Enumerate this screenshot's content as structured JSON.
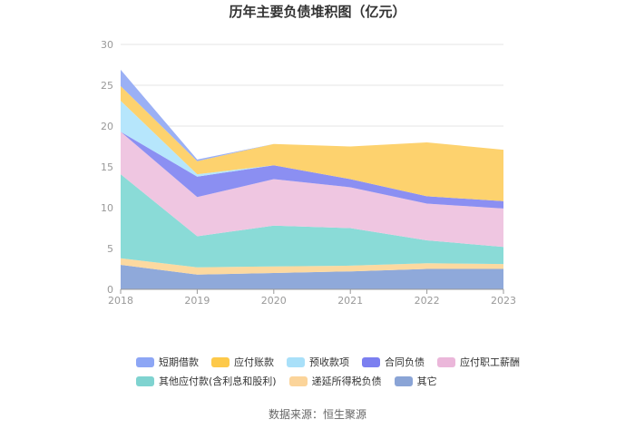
{
  "chart_data": {
    "type": "area",
    "title": "历年主要负债堆积图（亿元）",
    "stacked": true,
    "categories": [
      "2018",
      "2019",
      "2020",
      "2021",
      "2022",
      "2023"
    ],
    "ylim": [
      0,
      30
    ],
    "yticks": [
      "0",
      "5",
      "10",
      "15",
      "20",
      "25",
      "30"
    ],
    "grid": true,
    "legend_position": "bottom",
    "series": [
      {
        "name": "其它",
        "color": "#8fa9da",
        "values": [
          3.0,
          1.8,
          2.0,
          2.2,
          2.5,
          2.5
        ]
      },
      {
        "name": "递延所得税负债",
        "color": "#fcd9a0",
        "values": [
          0.8,
          0.9,
          0.8,
          0.7,
          0.7,
          0.6
        ]
      },
      {
        "name": "其他应付款(含利息和股利)",
        "color": "#8adbd7",
        "values": [
          10.3,
          3.8,
          5.0,
          4.6,
          2.8,
          2.1
        ]
      },
      {
        "name": "应付职工薪酬",
        "color": "#efc6e1",
        "values": [
          5.2,
          4.8,
          5.7,
          5.0,
          4.5,
          4.7
        ]
      },
      {
        "name": "合同负债",
        "color": "#8b8ff2",
        "values": [
          0.0,
          2.5,
          1.7,
          1.0,
          0.9,
          0.9
        ]
      },
      {
        "name": "预收款项",
        "color": "#b6e6fc",
        "values": [
          3.8,
          0.3,
          0.0,
          0.0,
          0.0,
          0.0
        ]
      },
      {
        "name": "应付账款",
        "color": "#fdd26e",
        "values": [
          1.8,
          1.6,
          2.6,
          4.0,
          6.6,
          6.3
        ]
      },
      {
        "name": "短期借款",
        "color": "#9bb0f5",
        "values": [
          2.0,
          0.2,
          0.0,
          0.0,
          0.0,
          0.0
        ]
      }
    ]
  },
  "legend": {
    "row1": [
      {
        "label": "短期借款",
        "color": "#8da6f5"
      },
      {
        "label": "应付账款",
        "color": "#fdc94a"
      },
      {
        "label": "预收款项",
        "color": "#a9e0f9"
      },
      {
        "label": "合同负债",
        "color": "#7b7ff0"
      },
      {
        "label": "应付职工薪酬",
        "color": "#ebb7da"
      }
    ],
    "row2": [
      {
        "label": "其他应付款(含利息和股利)",
        "color": "#7fd3d0"
      },
      {
        "label": "递延所得税负债",
        "color": "#fbd49a"
      },
      {
        "label": "其它",
        "color": "#8aa4d6"
      }
    ]
  },
  "source_note": "数据来源：恒生聚源"
}
